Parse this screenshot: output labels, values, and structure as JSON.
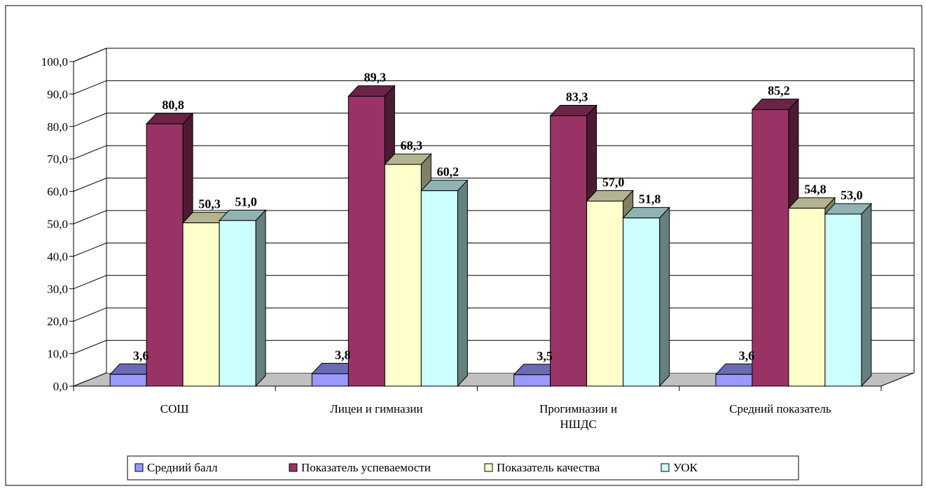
{
  "chart_data": {
    "type": "bar",
    "categories": [
      "СОШ",
      "Лицеи и гимназии",
      "Прогимназии и НШДС",
      "Средний показатель"
    ],
    "category_lines": [
      [
        "СОШ"
      ],
      [
        "Лицеи и гимназии"
      ],
      [
        "Прогимназии и",
        "НШДС"
      ],
      [
        "Средний показатель"
      ]
    ],
    "series": [
      {
        "name": "Средний балл",
        "values": [
          3.6,
          3.8,
          3.5,
          3.6
        ],
        "labels": [
          "3,6",
          "3,8",
          "3,5",
          "3,6"
        ],
        "color": "#9999ff"
      },
      {
        "name": "Показатель успеваемости",
        "values": [
          80.8,
          89.3,
          83.3,
          85.2
        ],
        "labels": [
          "80,8",
          "89,3",
          "83,3",
          "85,2"
        ],
        "color": "#993366"
      },
      {
        "name": "Показатель качества",
        "values": [
          50.3,
          68.3,
          57.0,
          54.8
        ],
        "labels": [
          "50,3",
          "68,3",
          "57,0",
          "54,8"
        ],
        "color": "#ffffcc"
      },
      {
        "name": "УОК",
        "values": [
          51.0,
          60.2,
          51.8,
          53.0
        ],
        "labels": [
          "51,0",
          "60,2",
          "51,8",
          "53,0"
        ],
        "color": "#ccffff"
      }
    ],
    "y_ticks": [
      "0,0",
      "10,0",
      "20,0",
      "30,0",
      "40,0",
      "50,0",
      "60,0",
      "70,0",
      "80,0",
      "90,0",
      "100,0"
    ],
    "ylim": [
      0,
      100
    ],
    "grid": true,
    "legend_position": "bottom",
    "title": "",
    "xlabel": "",
    "ylabel": ""
  }
}
